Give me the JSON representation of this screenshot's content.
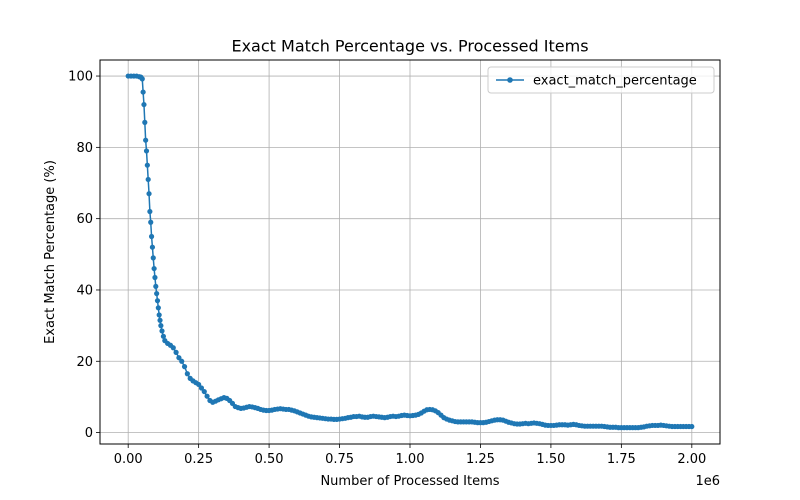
{
  "chart_data": {
    "type": "line",
    "title": "Exact Match Percentage vs. Processed Items",
    "xlabel": "Number of Processed Items",
    "ylabel": "Exact Match Percentage (%)",
    "x_offset_label": "1e6",
    "xlim": [
      -0.1,
      2.1
    ],
    "ylim": [
      -3.2,
      104.5
    ],
    "x_ticks": [
      0.0,
      0.25,
      0.5,
      0.75,
      1.0,
      1.25,
      1.5,
      1.75,
      2.0
    ],
    "x_tick_labels": [
      "0.00",
      "0.25",
      "0.50",
      "0.75",
      "1.00",
      "1.25",
      "1.50",
      "1.75",
      "2.00"
    ],
    "y_ticks": [
      0,
      20,
      40,
      60,
      80,
      100
    ],
    "y_tick_labels": [
      "0",
      "20",
      "40",
      "60",
      "80",
      "100"
    ],
    "grid": true,
    "legend_position": "top-right",
    "series": [
      {
        "name": "exact_match_percentage",
        "color": "#1f77b4",
        "marker": "circle",
        "points": [
          [
            0.0,
            100
          ],
          [
            0.01,
            100
          ],
          [
            0.02,
            100
          ],
          [
            0.03,
            100
          ],
          [
            0.04,
            99.8
          ],
          [
            0.045,
            99.7
          ],
          [
            0.05,
            99.2
          ],
          [
            0.053,
            95.5
          ],
          [
            0.056,
            92
          ],
          [
            0.059,
            87
          ],
          [
            0.062,
            82
          ],
          [
            0.065,
            79
          ],
          [
            0.068,
            75
          ],
          [
            0.071,
            71
          ],
          [
            0.074,
            67
          ],
          [
            0.077,
            62
          ],
          [
            0.08,
            59
          ],
          [
            0.083,
            55
          ],
          [
            0.086,
            52
          ],
          [
            0.089,
            49
          ],
          [
            0.092,
            46
          ],
          [
            0.095,
            43.5
          ],
          [
            0.098,
            41
          ],
          [
            0.101,
            39
          ],
          [
            0.104,
            37
          ],
          [
            0.107,
            35
          ],
          [
            0.11,
            33
          ],
          [
            0.113,
            31.5
          ],
          [
            0.116,
            30
          ],
          [
            0.12,
            28.5
          ],
          [
            0.125,
            27
          ],
          [
            0.13,
            25.8
          ],
          [
            0.14,
            25
          ],
          [
            0.15,
            24.5
          ],
          [
            0.16,
            23.8
          ],
          [
            0.17,
            22.5
          ],
          [
            0.18,
            21
          ],
          [
            0.19,
            20
          ],
          [
            0.2,
            18.5
          ],
          [
            0.21,
            16.5
          ],
          [
            0.22,
            15.2
          ],
          [
            0.23,
            14.5
          ],
          [
            0.24,
            14
          ],
          [
            0.25,
            13.5
          ],
          [
            0.26,
            12.5
          ],
          [
            0.27,
            11.5
          ],
          [
            0.28,
            10.2
          ],
          [
            0.29,
            9
          ],
          [
            0.3,
            8.5
          ],
          [
            0.31,
            8.8
          ],
          [
            0.32,
            9.2
          ],
          [
            0.33,
            9.5
          ],
          [
            0.34,
            9.8
          ],
          [
            0.35,
            9.6
          ],
          [
            0.36,
            9.0
          ],
          [
            0.37,
            8.2
          ],
          [
            0.38,
            7.3
          ],
          [
            0.39,
            7.0
          ],
          [
            0.4,
            6.8
          ],
          [
            0.41,
            6.9
          ],
          [
            0.42,
            7.1
          ],
          [
            0.43,
            7.3
          ],
          [
            0.44,
            7.2
          ],
          [
            0.45,
            7.0
          ],
          [
            0.46,
            6.8
          ],
          [
            0.47,
            6.5
          ],
          [
            0.48,
            6.3
          ],
          [
            0.49,
            6.2
          ],
          [
            0.5,
            6.2
          ],
          [
            0.51,
            6.3
          ],
          [
            0.52,
            6.5
          ],
          [
            0.53,
            6.6
          ],
          [
            0.54,
            6.7
          ],
          [
            0.55,
            6.6
          ],
          [
            0.56,
            6.5
          ],
          [
            0.57,
            6.5
          ],
          [
            0.58,
            6.3
          ],
          [
            0.59,
            6.1
          ],
          [
            0.6,
            5.8
          ],
          [
            0.61,
            5.5
          ],
          [
            0.62,
            5.2
          ],
          [
            0.63,
            4.9
          ],
          [
            0.64,
            4.6
          ],
          [
            0.65,
            4.4
          ],
          [
            0.66,
            4.3
          ],
          [
            0.67,
            4.2
          ],
          [
            0.68,
            4.1
          ],
          [
            0.69,
            4.0
          ],
          [
            0.7,
            3.9
          ],
          [
            0.71,
            3.8
          ],
          [
            0.72,
            3.8
          ],
          [
            0.73,
            3.7
          ],
          [
            0.74,
            3.7
          ],
          [
            0.75,
            3.8
          ],
          [
            0.76,
            3.9
          ],
          [
            0.77,
            4.0
          ],
          [
            0.78,
            4.2
          ],
          [
            0.79,
            4.3
          ],
          [
            0.8,
            4.5
          ],
          [
            0.81,
            4.5
          ],
          [
            0.82,
            4.6
          ],
          [
            0.83,
            4.4
          ],
          [
            0.84,
            4.3
          ],
          [
            0.85,
            4.3
          ],
          [
            0.86,
            4.5
          ],
          [
            0.87,
            4.6
          ],
          [
            0.88,
            4.5
          ],
          [
            0.89,
            4.4
          ],
          [
            0.9,
            4.3
          ],
          [
            0.91,
            4.2
          ],
          [
            0.92,
            4.3
          ],
          [
            0.93,
            4.5
          ],
          [
            0.94,
            4.6
          ],
          [
            0.95,
            4.5
          ],
          [
            0.96,
            4.6
          ],
          [
            0.97,
            4.8
          ],
          [
            0.98,
            4.9
          ],
          [
            0.99,
            4.8
          ],
          [
            1.0,
            4.7
          ],
          [
            1.01,
            4.8
          ],
          [
            1.02,
            4.9
          ],
          [
            1.03,
            5.1
          ],
          [
            1.04,
            5.5
          ],
          [
            1.05,
            6.0
          ],
          [
            1.06,
            6.4
          ],
          [
            1.07,
            6.5
          ],
          [
            1.08,
            6.4
          ],
          [
            1.09,
            6.1
          ],
          [
            1.1,
            5.6
          ],
          [
            1.11,
            4.9
          ],
          [
            1.12,
            4.2
          ],
          [
            1.13,
            3.8
          ],
          [
            1.14,
            3.5
          ],
          [
            1.15,
            3.3
          ],
          [
            1.16,
            3.1
          ],
          [
            1.17,
            3.0
          ],
          [
            1.18,
            3.0
          ],
          [
            1.19,
            3.0
          ],
          [
            1.2,
            3.0
          ],
          [
            1.21,
            3.0
          ],
          [
            1.22,
            3.0
          ],
          [
            1.23,
            2.9
          ],
          [
            1.24,
            2.8
          ],
          [
            1.25,
            2.8
          ],
          [
            1.26,
            2.8
          ],
          [
            1.27,
            2.9
          ],
          [
            1.28,
            3.1
          ],
          [
            1.29,
            3.3
          ],
          [
            1.3,
            3.5
          ],
          [
            1.31,
            3.6
          ],
          [
            1.32,
            3.6
          ],
          [
            1.33,
            3.5
          ],
          [
            1.34,
            3.2
          ],
          [
            1.35,
            2.9
          ],
          [
            1.36,
            2.7
          ],
          [
            1.37,
            2.5
          ],
          [
            1.38,
            2.4
          ],
          [
            1.39,
            2.4
          ],
          [
            1.4,
            2.5
          ],
          [
            1.41,
            2.6
          ],
          [
            1.42,
            2.5
          ],
          [
            1.43,
            2.6
          ],
          [
            1.44,
            2.7
          ],
          [
            1.45,
            2.6
          ],
          [
            1.46,
            2.5
          ],
          [
            1.47,
            2.3
          ],
          [
            1.48,
            2.1
          ],
          [
            1.49,
            2.0
          ],
          [
            1.5,
            2.0
          ],
          [
            1.51,
            2.0
          ],
          [
            1.52,
            2.1
          ],
          [
            1.53,
            2.2
          ],
          [
            1.54,
            2.2
          ],
          [
            1.55,
            2.2
          ],
          [
            1.56,
            2.1
          ],
          [
            1.57,
            2.2
          ],
          [
            1.58,
            2.3
          ],
          [
            1.59,
            2.2
          ],
          [
            1.6,
            2.0
          ],
          [
            1.61,
            1.9
          ],
          [
            1.62,
            1.8
          ],
          [
            1.63,
            1.8
          ],
          [
            1.64,
            1.8
          ],
          [
            1.65,
            1.8
          ],
          [
            1.66,
            1.8
          ],
          [
            1.67,
            1.8
          ],
          [
            1.68,
            1.8
          ],
          [
            1.69,
            1.7
          ],
          [
            1.7,
            1.6
          ],
          [
            1.71,
            1.5
          ],
          [
            1.72,
            1.5
          ],
          [
            1.73,
            1.5
          ],
          [
            1.74,
            1.4
          ],
          [
            1.75,
            1.4
          ],
          [
            1.76,
            1.4
          ],
          [
            1.77,
            1.4
          ],
          [
            1.78,
            1.4
          ],
          [
            1.79,
            1.4
          ],
          [
            1.8,
            1.4
          ],
          [
            1.81,
            1.4
          ],
          [
            1.82,
            1.5
          ],
          [
            1.83,
            1.6
          ],
          [
            1.84,
            1.8
          ],
          [
            1.85,
            1.9
          ],
          [
            1.86,
            2.0
          ],
          [
            1.87,
            2.0
          ],
          [
            1.88,
            2.0
          ],
          [
            1.89,
            2.1
          ],
          [
            1.9,
            2.0
          ],
          [
            1.91,
            1.9
          ],
          [
            1.92,
            1.8
          ],
          [
            1.93,
            1.7
          ],
          [
            1.94,
            1.7
          ],
          [
            1.95,
            1.7
          ],
          [
            1.96,
            1.7
          ],
          [
            1.97,
            1.7
          ],
          [
            1.98,
            1.7
          ],
          [
            1.99,
            1.7
          ],
          [
            2.0,
            1.7
          ]
        ]
      }
    ]
  }
}
